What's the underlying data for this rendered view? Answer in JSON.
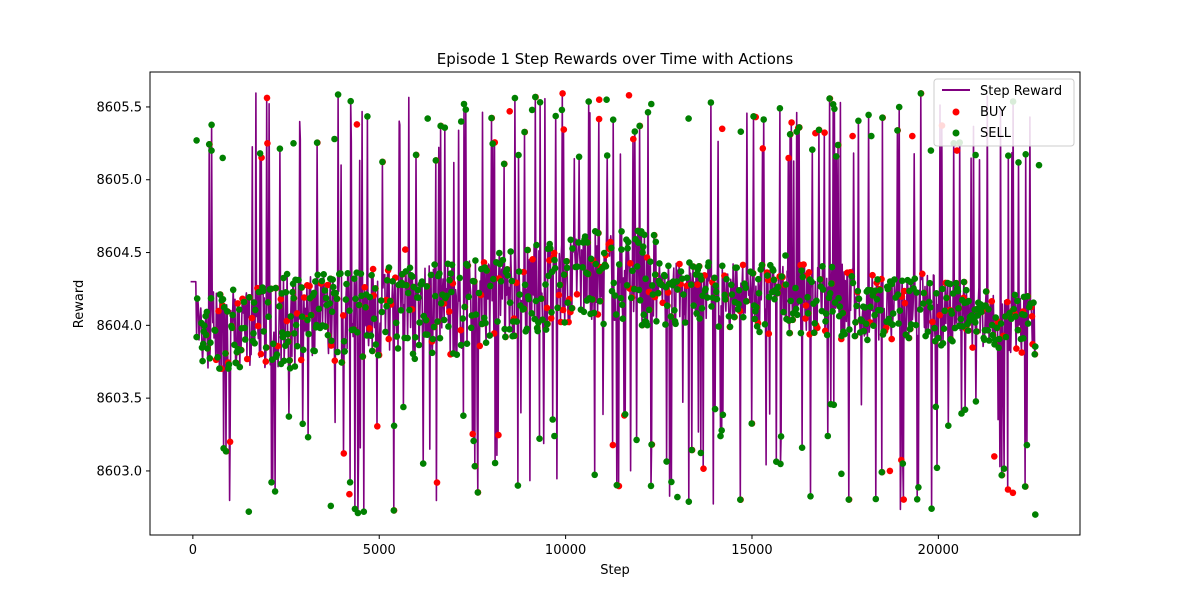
{
  "chart_data": {
    "type": "line",
    "title": "Episode 1 Step Rewards over Time with Actions",
    "xlabel": "Step",
    "ylabel": "Reward",
    "xlim": [
      -1150,
      23800
    ],
    "ylim": [
      8602.56,
      8605.74
    ],
    "xticks": [
      0,
      5000,
      10000,
      15000,
      20000
    ],
    "xtick_labels": [
      "0",
      "5000",
      "10000",
      "15000",
      "20000"
    ],
    "yticks": [
      8603.0,
      8603.5,
      8604.0,
      8604.5,
      8605.0,
      8605.5
    ],
    "ytick_labels": [
      "8603.0",
      "8603.5",
      "8604.0",
      "8604.5",
      "8605.0",
      "8605.5"
    ],
    "grid": false,
    "legend_position": "top-right",
    "series": [
      {
        "name": "Step Reward",
        "kind": "line",
        "color": "#800080"
      },
      {
        "name": "BUY",
        "kind": "scatter",
        "color": "#ff0000"
      },
      {
        "name": "SELL",
        "kind": "scatter",
        "color": "#008000"
      }
    ],
    "step_reward_profile": {
      "start_step": 0,
      "end_step": 22600,
      "initial_value": 8604.3,
      "band_center": [
        [
          0,
          8604.05
        ],
        [
          1700,
          8604.0
        ],
        [
          2500,
          8604.1
        ],
        [
          5000,
          8604.15
        ],
        [
          7500,
          8604.2
        ],
        [
          10000,
          8604.3
        ],
        [
          11500,
          8604.4
        ],
        [
          12500,
          8604.3
        ],
        [
          15000,
          8604.2
        ],
        [
          17500,
          8604.15
        ],
        [
          20000,
          8604.1
        ],
        [
          22600,
          8604.0
        ]
      ],
      "band_upper": [
        [
          0,
          8604.25
        ],
        [
          1700,
          8604.25
        ],
        [
          1800,
          8604.35
        ],
        [
          5000,
          8604.4
        ],
        [
          7500,
          8604.45
        ],
        [
          9000,
          8604.55
        ],
        [
          10000,
          8604.6
        ],
        [
          10800,
          8604.65
        ],
        [
          12400,
          8604.65
        ],
        [
          12600,
          8604.45
        ],
        [
          15000,
          8604.42
        ],
        [
          17500,
          8604.42
        ],
        [
          20000,
          8604.35
        ],
        [
          21500,
          8604.25
        ],
        [
          22600,
          8604.2
        ]
      ],
      "band_lower": [
        [
          0,
          8603.7
        ],
        [
          2500,
          8603.7
        ],
        [
          5000,
          8603.75
        ],
        [
          7500,
          8603.8
        ],
        [
          10000,
          8604.0
        ],
        [
          12500,
          8604.0
        ],
        [
          15000,
          8603.95
        ],
        [
          17500,
          8603.9
        ],
        [
          20000,
          8603.85
        ],
        [
          22600,
          8603.8
        ]
      ],
      "spike_upper_range": [
        8605.1,
        8605.6
      ],
      "spike_lower_range": [
        8602.7,
        8603.5
      ]
    },
    "points_buy": [
      [
        2000,
        8605.25
      ],
      [
        4400,
        8605.38
      ],
      [
        5700,
        8604.52
      ],
      [
        6550,
        8602.92
      ],
      [
        8500,
        8605.47
      ],
      [
        10900,
        8605.55
      ],
      [
        11700,
        8605.58
      ],
      [
        14200,
        8605.35
      ],
      [
        15100,
        8605.43
      ],
      [
        16700,
        8605.32
      ],
      [
        17700,
        8605.3
      ],
      [
        18700,
        8603.0
      ],
      [
        19300,
        8605.3
      ],
      [
        20500,
        8605.2
      ],
      [
        21500,
        8603.1
      ],
      [
        22000,
        8602.85
      ],
      [
        1000,
        8603.2
      ],
      [
        4200,
        8602.84
      ]
    ],
    "points_sell": [
      [
        100,
        8605.27
      ],
      [
        500,
        8605.2
      ],
      [
        800,
        8605.15
      ],
      [
        1500,
        8602.72
      ],
      [
        2700,
        8605.25
      ],
      [
        3800,
        8605.28
      ],
      [
        6300,
        8605.42
      ],
      [
        7200,
        8605.4
      ],
      [
        9100,
        8605.48
      ],
      [
        9900,
        8605.48
      ],
      [
        11100,
        8605.55
      ],
      [
        12300,
        8605.52
      ],
      [
        13000,
        8602.82
      ],
      [
        13300,
        8605.42
      ],
      [
        14700,
        8605.33
      ],
      [
        16200,
        8605.33
      ],
      [
        17400,
        8602.98
      ],
      [
        18200,
        8605.3
      ],
      [
        19800,
        8605.2
      ],
      [
        21000,
        8605.17
      ],
      [
        22600,
        8602.7
      ],
      [
        22700,
        8605.1
      ],
      [
        3700,
        8602.76
      ],
      [
        5400,
        8603.31
      ],
      [
        9700,
        8603.24
      ],
      [
        11500,
        8604.52
      ],
      [
        15900,
        8604.48
      ]
    ]
  }
}
